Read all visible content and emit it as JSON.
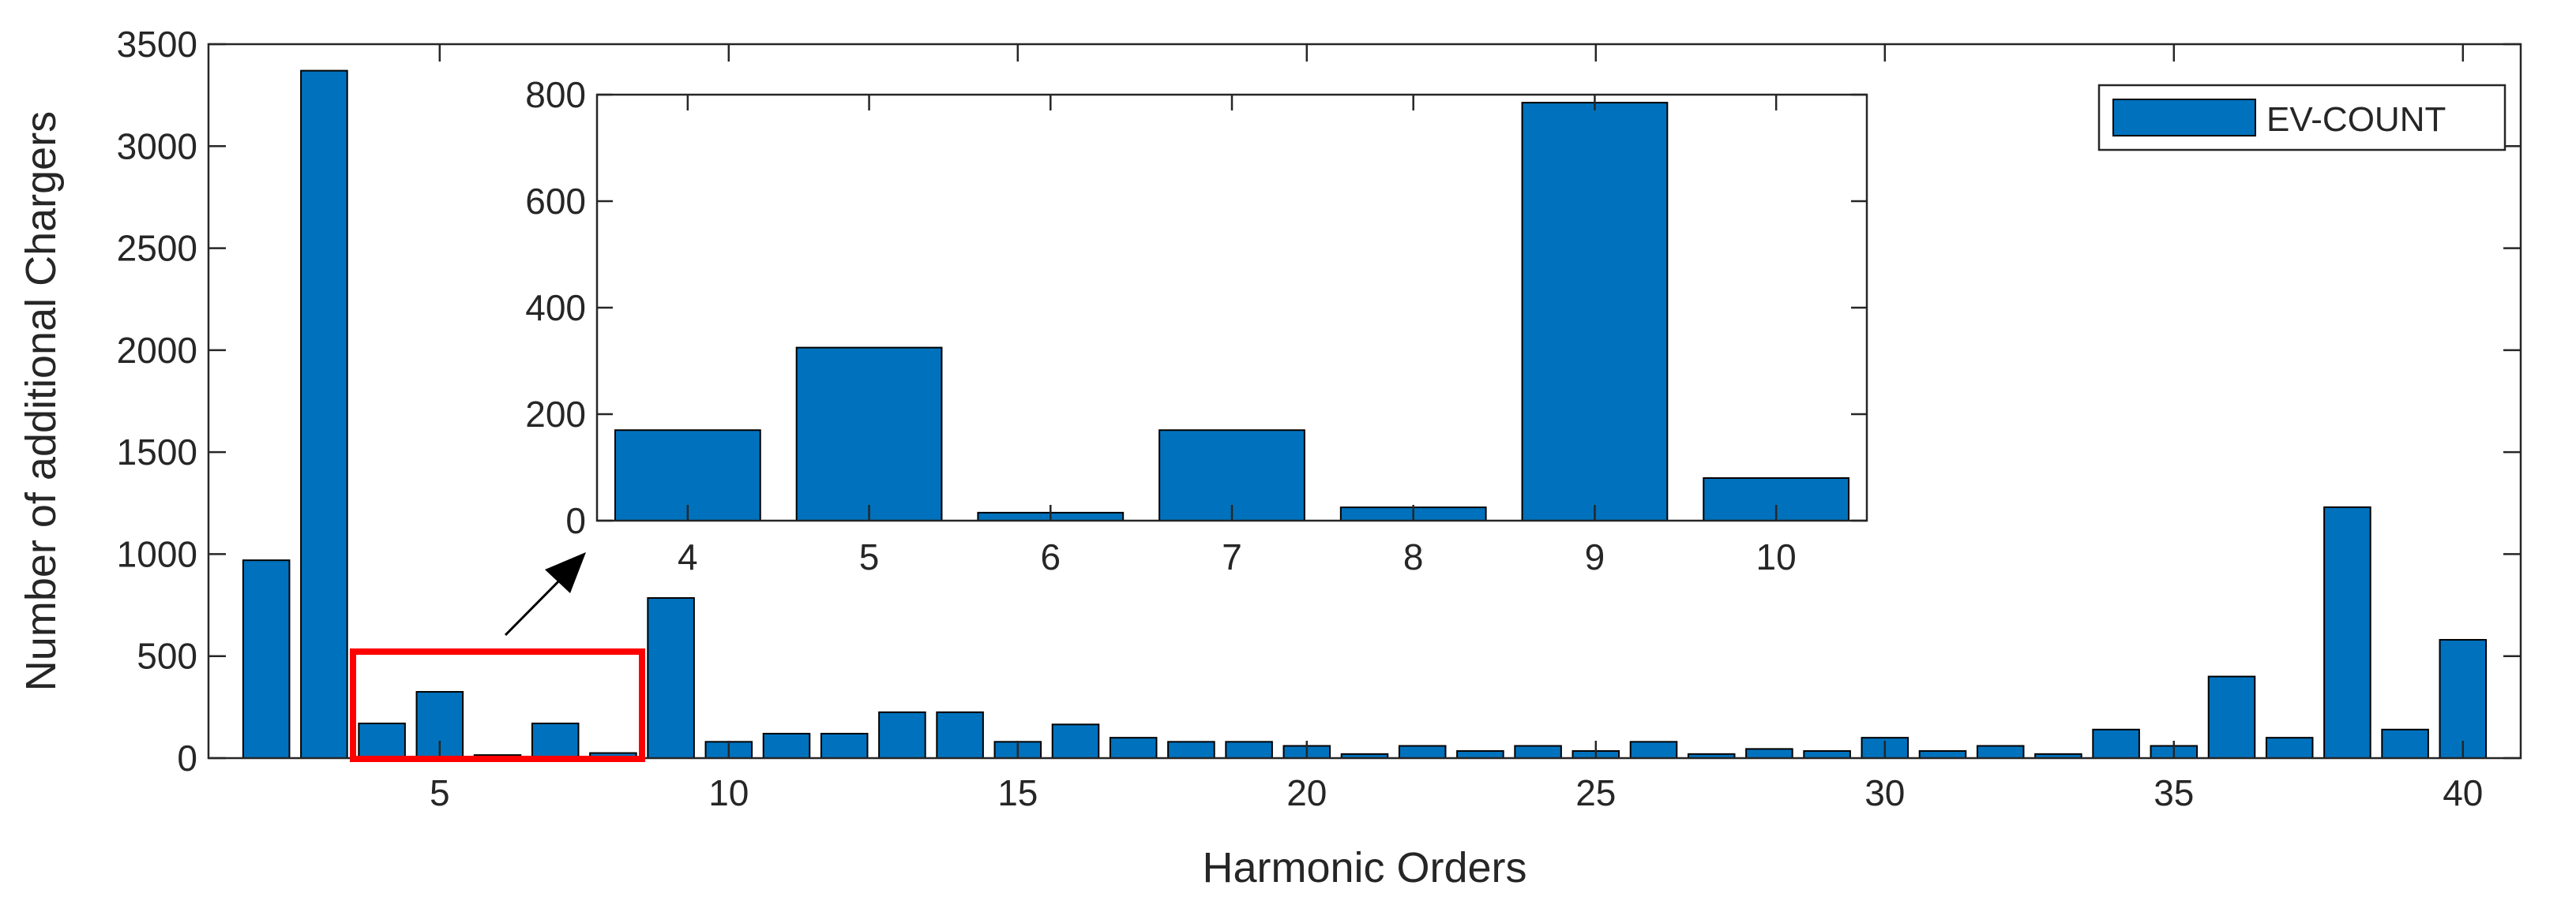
{
  "chart_data": [
    {
      "type": "bar",
      "xlabel": "Harmonic Orders",
      "ylabel": "Number of additional Chargers",
      "xlim": [
        1,
        41
      ],
      "ylim": [
        0,
        3500
      ],
      "xticks": [
        5,
        10,
        15,
        20,
        25,
        30,
        35,
        40
      ],
      "yticks": [
        0,
        500,
        1000,
        1500,
        2000,
        2500,
        3000,
        3500
      ],
      "legend": {
        "position": "top-right",
        "entries": [
          "EV-COUNT"
        ]
      },
      "color": "#0072BD",
      "grid": false,
      "series": [
        {
          "name": "EV-COUNT",
          "x": [
            2,
            3,
            4,
            5,
            6,
            7,
            8,
            9,
            10,
            11,
            12,
            13,
            14,
            15,
            16,
            17,
            18,
            19,
            20,
            21,
            22,
            23,
            24,
            25,
            26,
            27,
            28,
            29,
            30,
            31,
            32,
            33,
            34,
            35,
            36,
            37,
            38,
            39,
            40
          ],
          "values": [
            970,
            3370,
            170,
            325,
            15,
            170,
            25,
            785,
            80,
            120,
            120,
            225,
            225,
            80,
            165,
            100,
            80,
            80,
            60,
            20,
            60,
            35,
            60,
            35,
            80,
            20,
            45,
            35,
            100,
            35,
            60,
            20,
            140,
            60,
            400,
            100,
            1230,
            140,
            580
          ]
        }
      ],
      "annotation": {
        "highlight_range": [
          4,
          8
        ],
        "highlight_color": "#ff0000",
        "arrow": "to inset"
      }
    },
    {
      "type": "bar",
      "inset": true,
      "categories": [
        "4",
        "5",
        "6",
        "7",
        "8",
        "9",
        "10"
      ],
      "values": [
        170,
        325,
        15,
        170,
        25,
        785,
        80
      ],
      "ylim": [
        0,
        800
      ],
      "yticks": [
        0,
        200,
        400,
        600,
        800
      ],
      "color": "#0072BD"
    }
  ]
}
